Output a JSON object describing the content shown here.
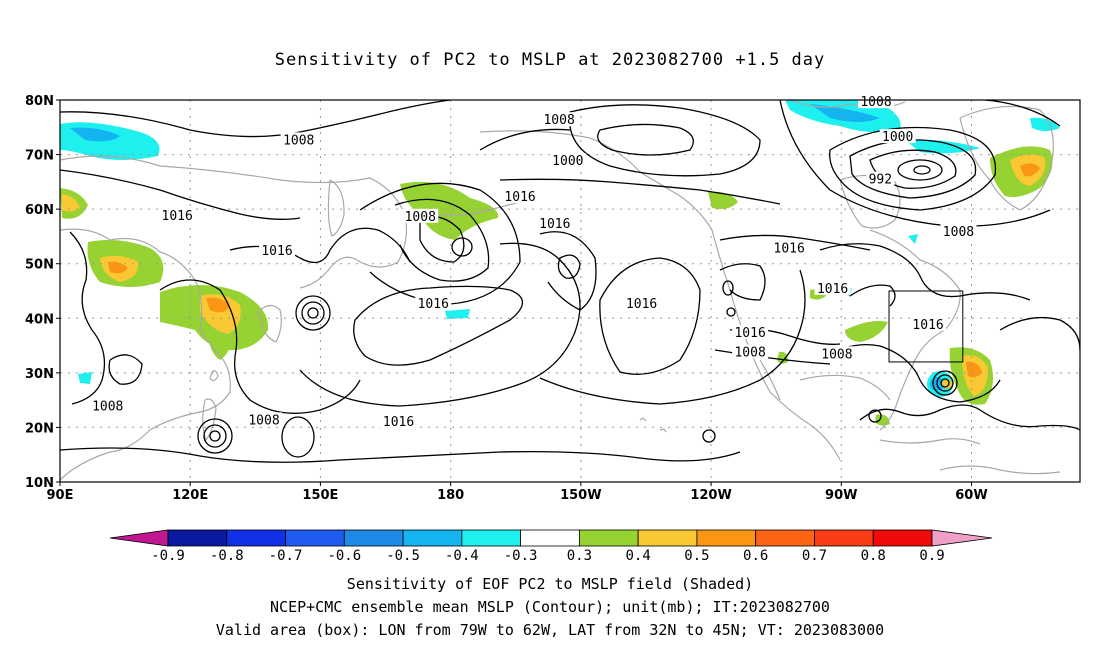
{
  "title": "Sensitivity of PC2 to MSLP at 2023082700 +1.5 day",
  "captions": [
    "Sensitivity of EOF PC2 to MSLP field (Shaded)",
    "NCEP+CMC ensemble mean MSLP (Contour); unit(mb); IT:2023082700",
    "Valid area (box): LON from 79W to 62W, LAT from 32N to 45N; VT: 2023083000"
  ],
  "map": {
    "lat_range": [
      10,
      80
    ],
    "lon_range_east": [
      90,
      325
    ],
    "lat_ticks": [
      {
        "value": 80,
        "label": "80N"
      },
      {
        "value": 70,
        "label": "70N"
      },
      {
        "value": 60,
        "label": "60N"
      },
      {
        "value": 50,
        "label": "50N"
      },
      {
        "value": 40,
        "label": "40N"
      },
      {
        "value": 30,
        "label": "30N"
      },
      {
        "value": 20,
        "label": "20N"
      },
      {
        "value": 10,
        "label": "10N"
      }
    ],
    "lon_ticks": [
      {
        "value": 90,
        "label": "90E"
      },
      {
        "value": 120,
        "label": "120E"
      },
      {
        "value": 150,
        "label": "150E"
      },
      {
        "value": 180,
        "label": "180"
      },
      {
        "value": 210,
        "label": "150W"
      },
      {
        "value": 240,
        "label": "120W"
      },
      {
        "value": 270,
        "label": "90W"
      },
      {
        "value": 300,
        "label": "60W"
      }
    ],
    "valid_box": {
      "lon_west": -79,
      "lon_east": -62,
      "lat_south": 32,
      "lat_north": 45
    },
    "contour_labels": [
      {
        "text": "1008",
        "lon": 145,
        "lat": 72.6
      },
      {
        "text": "1016",
        "lon": 117,
        "lat": 58.7
      },
      {
        "text": "1016",
        "lon": 140,
        "lat": 52.3
      },
      {
        "text": "1008",
        "lon": 173,
        "lat": 58.6
      },
      {
        "text": "1016",
        "lon": 176,
        "lat": 42.6
      },
      {
        "text": "1008",
        "lon": 101,
        "lat": 23.8
      },
      {
        "text": "1008",
        "lon": 137,
        "lat": 21.3
      },
      {
        "text": "1016",
        "lon": 168,
        "lat": 21.0
      },
      {
        "text": "1008",
        "lon": 205,
        "lat": 76.3
      },
      {
        "text": "1000",
        "lon": 207,
        "lat": 68.8
      },
      {
        "text": "1016",
        "lon": 196,
        "lat": 62.2
      },
      {
        "text": "1016",
        "lon": 204,
        "lat": 57.3
      },
      {
        "text": "1016",
        "lon": 224,
        "lat": 42.6
      },
      {
        "text": "1016",
        "lon": 249,
        "lat": 37.3
      },
      {
        "text": "1008",
        "lon": 249,
        "lat": 33.7
      },
      {
        "text": "1016",
        "lon": 258,
        "lat": 52.8
      },
      {
        "text": "1016",
        "lon": 268,
        "lat": 45.4
      },
      {
        "text": "1008",
        "lon": 269,
        "lat": 33.4
      },
      {
        "text": "1008",
        "lon": 278,
        "lat": 79.6
      },
      {
        "text": "1000",
        "lon": 283,
        "lat": 73.2
      },
      {
        "text": "992",
        "lon": 279,
        "lat": 65.4
      },
      {
        "text": "1008",
        "lon": 297,
        "lat": 55.8
      },
      {
        "text": "1016",
        "lon": 290,
        "lat": 38.8
      }
    ]
  },
  "colorbar": {
    "labels": [
      "-0.9",
      "-0.8",
      "-0.7",
      "-0.6",
      "-0.5",
      "-0.4",
      "-0.3",
      "0.3",
      "0.4",
      "0.5",
      "0.6",
      "0.7",
      "0.8",
      "0.9"
    ],
    "colors": [
      "#0a1aa0",
      "#1230e6",
      "#1e5cf0",
      "#1e8ae8",
      "#14b4f0",
      "#1ef0f0",
      "#ffffff",
      "#96d232",
      "#fac832",
      "#fa9614",
      "#fa6414",
      "#fa3c14",
      "#f00a0a"
    ],
    "low_end_color": "#c01890",
    "high_end_color": "#f0a0c8"
  },
  "colors": {
    "contour": "#000000",
    "coastline": "#a8a8a8",
    "grid": "#999999"
  }
}
